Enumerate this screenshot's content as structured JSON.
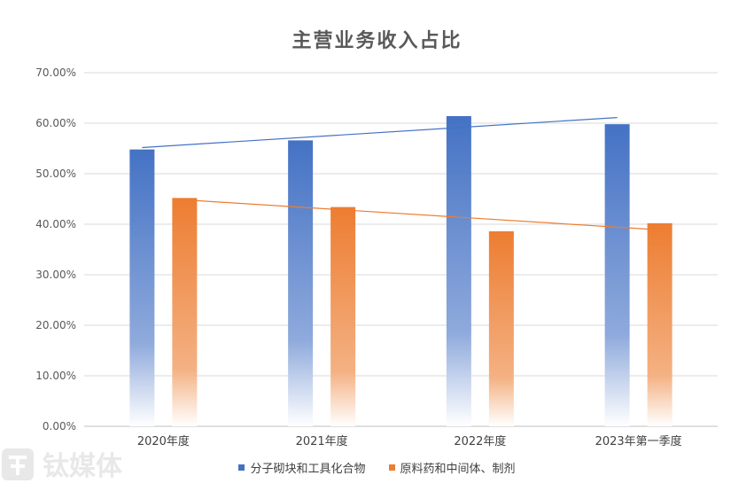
{
  "chart_data": {
    "type": "bar",
    "title": "主营业务收入占比",
    "categories": [
      "2020年度",
      "2021年度",
      "2022年度",
      "2023年第一季度"
    ],
    "series": [
      {
        "name": "分子砌块和工具化合物",
        "values": [
          54.8,
          56.6,
          61.4,
          59.8
        ],
        "color": "#4472C4"
      },
      {
        "name": "原料药和中间体、制剂",
        "values": [
          45.2,
          43.4,
          38.6,
          40.2
        ],
        "color": "#ED7D31"
      }
    ],
    "trendlines": "linear",
    "y_ticks": [
      "0.00%",
      "10.00%",
      "20.00%",
      "30.00%",
      "40.00%",
      "50.00%",
      "60.00%",
      "70.00%"
    ],
    "ylim": [
      0,
      70
    ],
    "grid": true,
    "legend_position": "bottom"
  },
  "watermark": "钛媒体"
}
